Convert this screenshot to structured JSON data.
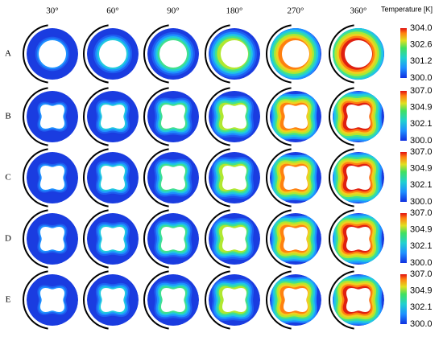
{
  "column_headers": [
    "30°",
    "60°",
    "90°",
    "180°",
    "270°",
    "360°"
  ],
  "row_labels": [
    "A",
    "B",
    "C",
    "D",
    "E"
  ],
  "colorbar_title": "Temperature [K]",
  "colorbars": [
    {
      "ticks": [
        "304.0",
        "302.6",
        "301.2",
        "300.0"
      ]
    },
    {
      "ticks": [
        "307.0",
        "304.9",
        "302.1",
        "300.0"
      ]
    },
    {
      "ticks": [
        "307.0",
        "304.9",
        "302.1",
        "300.0"
      ]
    },
    {
      "ticks": [
        "307.0",
        "304.9",
        "302.1",
        "300.0"
      ]
    },
    {
      "ticks": [
        "307.0",
        "304.9",
        "302.1",
        "300.0"
      ]
    }
  ]
}
